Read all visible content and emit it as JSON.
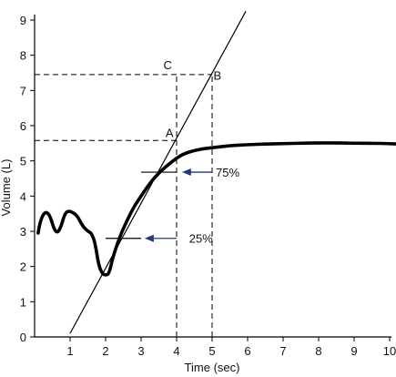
{
  "chart_data": {
    "type": "line",
    "xlabel": "Time (sec)",
    "ylabel": "Volume (L)",
    "xlim": [
      0,
      10
    ],
    "ylim": [
      0,
      9
    ],
    "x_ticks": [
      1,
      2,
      3,
      4,
      5,
      6,
      7,
      8,
      9,
      10
    ],
    "y_ticks": [
      0,
      1,
      2,
      3,
      4,
      5,
      6,
      7,
      8,
      9
    ],
    "grid": false,
    "legend": "none",
    "series": [
      {
        "kind": "volume-curve",
        "points": [
          [
            0.1,
            2.95
          ],
          [
            0.15,
            3.25
          ],
          [
            0.25,
            3.5
          ],
          [
            0.35,
            3.55
          ],
          [
            0.45,
            3.4
          ],
          [
            0.55,
            3.05
          ],
          [
            0.65,
            2.95
          ],
          [
            0.75,
            3.15
          ],
          [
            0.85,
            3.5
          ],
          [
            0.95,
            3.58
          ],
          [
            1.05,
            3.55
          ],
          [
            1.2,
            3.45
          ],
          [
            1.35,
            3.15
          ],
          [
            1.5,
            3.0
          ],
          [
            1.6,
            2.95
          ],
          [
            1.7,
            2.7
          ],
          [
            1.8,
            2.05
          ],
          [
            1.9,
            1.8
          ],
          [
            2.0,
            1.75
          ],
          [
            2.1,
            1.8
          ],
          [
            2.2,
            2.25
          ],
          [
            2.4,
            2.85
          ],
          [
            2.6,
            3.3
          ],
          [
            2.8,
            3.7
          ],
          [
            3.0,
            4.0
          ],
          [
            3.2,
            4.3
          ],
          [
            3.4,
            4.55
          ],
          [
            3.6,
            4.75
          ],
          [
            3.8,
            4.92
          ],
          [
            4.0,
            5.08
          ],
          [
            4.2,
            5.2
          ],
          [
            4.5,
            5.3
          ],
          [
            4.8,
            5.35
          ],
          [
            5.2,
            5.4
          ],
          [
            5.6,
            5.44
          ],
          [
            6.0,
            5.46
          ],
          [
            6.5,
            5.48
          ],
          [
            7.0,
            5.49
          ],
          [
            7.5,
            5.5
          ],
          [
            8.0,
            5.51
          ],
          [
            8.5,
            5.51
          ],
          [
            9.0,
            5.5
          ],
          [
            9.5,
            5.5
          ],
          [
            10.0,
            5.49
          ],
          [
            10.2,
            5.48
          ]
        ]
      },
      {
        "kind": "tangent-line",
        "points": [
          [
            1.0,
            0.1
          ],
          [
            5.95,
            9.25
          ]
        ]
      }
    ],
    "reference_lines": [
      {
        "kind": "horizontal-dashed",
        "y": 7.45,
        "x_from": 0,
        "x_to": 5.0
      },
      {
        "kind": "horizontal-dashed",
        "y": 5.58,
        "x_from": 0,
        "x_to": 4.0
      },
      {
        "kind": "vertical-dashed",
        "x": 4.0,
        "y_from": 0,
        "y_to": 7.45
      },
      {
        "kind": "vertical-dashed",
        "x": 5.0,
        "y_from": 0,
        "y_to": 7.45
      }
    ],
    "markers": [
      {
        "kind": "short-horizontal",
        "x_from": 3.0,
        "x_to": 4.0,
        "y": 4.68
      },
      {
        "kind": "short-horizontal",
        "x_from": 2.0,
        "x_to": 3.0,
        "y": 2.8
      }
    ],
    "annotations": [
      {
        "label": "A",
        "x": 3.8,
        "y": 5.68
      },
      {
        "label": "B",
        "x": 5.15,
        "y": 7.3
      },
      {
        "label": "C",
        "x": 3.75,
        "y": 7.6
      },
      {
        "label": "75%",
        "arrow_tip": [
          4.15,
          4.68
        ],
        "arrow_tail": [
          5.0,
          4.68
        ],
        "text_x": 5.0,
        "text_y": 4.68
      },
      {
        "label": "25%",
        "arrow_tip": [
          3.1,
          2.8
        ],
        "arrow_tail": [
          4.0,
          2.8
        ],
        "text_x": 4.25,
        "text_y": 2.8
      }
    ],
    "colors": {
      "curve": "#000000",
      "lines": "#000000",
      "arrow": "#1f3b73"
    }
  }
}
